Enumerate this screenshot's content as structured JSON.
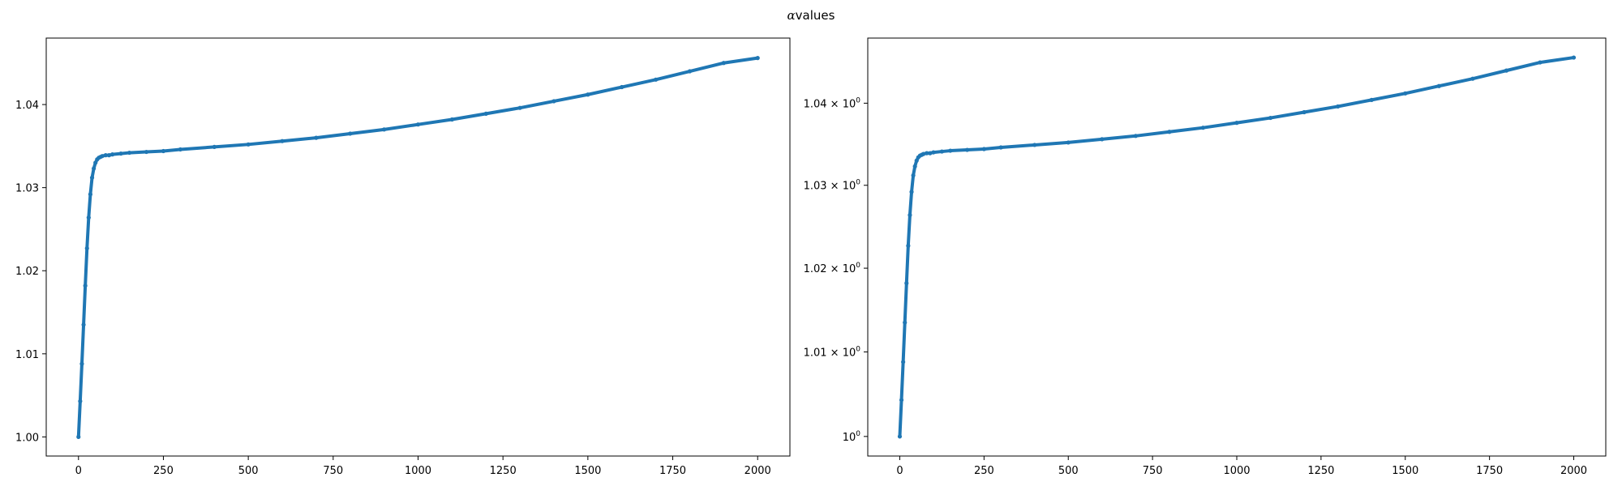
{
  "figure": {
    "suptitle_symbol": "α",
    "suptitle_text": "values"
  },
  "chart_data": [
    {
      "type": "line",
      "title": "",
      "xlabel": "",
      "ylabel": "",
      "xlim": [
        -95,
        2095
      ],
      "ylim": [
        0.9977,
        1.048
      ],
      "yscale": "linear",
      "grid": false,
      "series_color": "#1f77b4",
      "marker": "dot",
      "x_ticks": [
        0,
        250,
        500,
        750,
        1000,
        1250,
        1500,
        1750,
        2000
      ],
      "x_tick_labels": [
        "0",
        "250",
        "500",
        "750",
        "1000",
        "1250",
        "1500",
        "1750",
        "2000"
      ],
      "y_ticks": [
        1.0,
        1.01,
        1.02,
        1.03,
        1.04
      ],
      "y_tick_labels": [
        "1.00",
        "1.01",
        "1.02",
        "1.03",
        "1.04"
      ],
      "series": [
        {
          "x": [
            0,
            5,
            10,
            15,
            20,
            25,
            30,
            35,
            40,
            45,
            50,
            55,
            60,
            65,
            70,
            80,
            90,
            100,
            125,
            150,
            200,
            250,
            300,
            400,
            500,
            600,
            700,
            800,
            900,
            1000,
            1100,
            1200,
            1300,
            1400,
            1500,
            1600,
            1700,
            1800,
            1900,
            2000
          ],
          "y": [
            1.0,
            1.0043,
            1.0088,
            1.0135,
            1.0182,
            1.0227,
            1.0264,
            1.0292,
            1.0312,
            1.0323,
            1.033,
            1.0334,
            1.0336,
            1.0337,
            1.0338,
            1.0339,
            1.0339,
            1.034,
            1.0341,
            1.0342,
            1.0343,
            1.0344,
            1.0346,
            1.0349,
            1.0352,
            1.0356,
            1.036,
            1.0365,
            1.037,
            1.0376,
            1.0382,
            1.0389,
            1.0396,
            1.0404,
            1.0412,
            1.0421,
            1.043,
            1.044,
            1.045,
            1.0456
          ]
        }
      ]
    },
    {
      "type": "line",
      "title": "",
      "xlabel": "",
      "ylabel": "",
      "xlim": [
        -95,
        2095
      ],
      "ylim": [
        0.9977,
        1.048
      ],
      "yscale": "log",
      "grid": false,
      "series_color": "#1f77b4",
      "marker": "dot",
      "x_ticks": [
        0,
        250,
        500,
        750,
        1000,
        1250,
        1500,
        1750,
        2000
      ],
      "x_tick_labels": [
        "0",
        "250",
        "500",
        "750",
        "1000",
        "1250",
        "1500",
        "1750",
        "2000"
      ],
      "y_ticks": [
        1.0,
        1.01,
        1.02,
        1.03,
        1.04
      ],
      "y_tick_labels": [
        {
          "mantissa": "",
          "base": "10",
          "exp": "0"
        },
        {
          "mantissa": "1.01 × ",
          "base": "10",
          "exp": "0"
        },
        {
          "mantissa": "1.02 × ",
          "base": "10",
          "exp": "0"
        },
        {
          "mantissa": "1.03 × ",
          "base": "10",
          "exp": "0"
        },
        {
          "mantissa": "1.04 × ",
          "base": "10",
          "exp": "0"
        }
      ],
      "series": [
        {
          "x": [
            0,
            5,
            10,
            15,
            20,
            25,
            30,
            35,
            40,
            45,
            50,
            55,
            60,
            65,
            70,
            80,
            90,
            100,
            125,
            150,
            200,
            250,
            300,
            400,
            500,
            600,
            700,
            800,
            900,
            1000,
            1100,
            1200,
            1300,
            1400,
            1500,
            1600,
            1700,
            1800,
            1900,
            2000
          ],
          "y": [
            1.0,
            1.0043,
            1.0088,
            1.0135,
            1.0182,
            1.0227,
            1.0264,
            1.0292,
            1.0312,
            1.0323,
            1.033,
            1.0334,
            1.0336,
            1.0337,
            1.0338,
            1.0339,
            1.0339,
            1.034,
            1.0341,
            1.0342,
            1.0343,
            1.0344,
            1.0346,
            1.0349,
            1.0352,
            1.0356,
            1.036,
            1.0365,
            1.037,
            1.0376,
            1.0382,
            1.0389,
            1.0396,
            1.0404,
            1.0412,
            1.0421,
            1.043,
            1.044,
            1.045,
            1.0456
          ]
        }
      ]
    }
  ]
}
